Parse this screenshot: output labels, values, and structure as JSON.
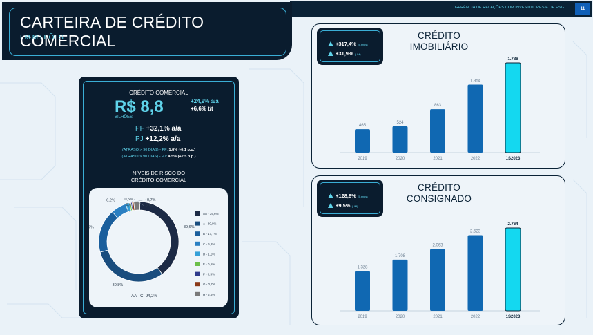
{
  "header": {
    "title": "CARTEIRA DE CRÉDITO COMERCIAL",
    "subtitle": "EM MILHÕES",
    "section": "GERÊNCIA DE RELAÇÕES COM INVESTIDORES E DE ESG",
    "page": "11"
  },
  "summary": {
    "label": "CRÉDITO COMERCIAL",
    "value": "R$ 8,8",
    "unit": "BILHÕES",
    "growth_yoy": "+24,9% a/a",
    "growth_qoq": "+6,6% t/t",
    "pf_label": "PF",
    "pf_value": "+32,1% a/a",
    "pj_label": "PJ",
    "pj_value": "+12,2% a/a",
    "atraso_pf_label": "(ATRASO > 90 DIAS) - PF:",
    "atraso_pf_value": "1,8% (-0,1 p.p.)",
    "atraso_pj_label": "(ATRASO > 90 DIAS) - PJ:",
    "atraso_pj_value": "4,5% (+2,5 p.p.)",
    "risk_title_1": "NÍVEIS DE RISCO DO",
    "risk_title_2": "CRÉDITO COMERCIAL"
  },
  "colors": {
    "navy": "#0a1c2e",
    "cyan": "#5fd3ea",
    "bar_blue": "#1068b2",
    "bar_highlight": "#14d8f0"
  },
  "chart_data": [
    {
      "type": "pie",
      "title": "",
      "center_label": "AA - C: 94,2%",
      "slices": [
        {
          "name": "AA - 39,6%",
          "label": "39,6%",
          "value": 39.6,
          "color": "#1c2a45"
        },
        {
          "name": "A - 30,8%",
          "label": "30,8%",
          "value": 30.8,
          "color": "#1a4d7e"
        },
        {
          "name": "B - 17,7%",
          "label": "17,7%",
          "value": 17.7,
          "color": "#1a5e9c"
        },
        {
          "name": "C - 6,2%",
          "label": "6,2%",
          "value": 6.2,
          "color": "#2a7fc2"
        },
        {
          "name": "D - 1,5%",
          "label": "1,5%",
          "value": 1.5,
          "color": "#35a0d8"
        },
        {
          "name": "E - 0,6%",
          "label": "0,6%",
          "value": 0.6,
          "color": "#6cbf4a"
        },
        {
          "name": "F - 0,5%",
          "label": "0,5%",
          "value": 0.5,
          "color": "#2e3a8c"
        },
        {
          "name": "G - 0,7%",
          "label": "0,7%",
          "value": 0.7,
          "color": "#8b3a1a"
        },
        {
          "name": "H - 2,5%",
          "label": "2,5%",
          "value": 2.5,
          "color": "#7a7a7a"
        }
      ],
      "legend": "right"
    },
    {
      "type": "bar",
      "title": "CRÉDITO IMOBILIÁRIO",
      "badge_1": "+317,4%",
      "badge_1_note": "(5 anos)",
      "badge_2": "+31,9%",
      "badge_2_note": "(UM)",
      "categories": [
        "2019",
        "2020",
        "2021",
        "2022",
        "1S2023"
      ],
      "values": [
        465,
        524,
        863,
        1354,
        1786
      ],
      "value_labels": [
        "465",
        "524",
        "863",
        "1.354",
        "1.786"
      ],
      "highlight_last": true
    },
    {
      "type": "bar",
      "title": "CRÉDITO CONSIGNADO",
      "badge_1": "+128,8%",
      "badge_1_note": "(5 anos)",
      "badge_2": "+9,5%",
      "badge_2_note": "(UM)",
      "categories": [
        "2019",
        "2020",
        "2021",
        "2022",
        "1S2023"
      ],
      "values": [
        1328,
        1708,
        2063,
        2523,
        2764
      ],
      "value_labels": [
        "1.328",
        "1.708",
        "2.063",
        "2.523",
        "2.764"
      ],
      "highlight_last": true
    }
  ]
}
